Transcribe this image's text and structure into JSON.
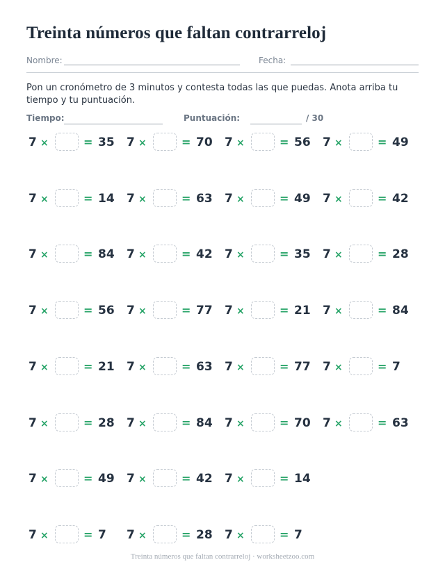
{
  "title": "Treinta números que faltan contrarreloj",
  "fields": {
    "name_label": "Nombre:",
    "date_label": "Fecha:"
  },
  "instructions": "Pon un cronómetro de 3 minutos y contesta todas las que puedas. Anota arriba tu tiempo y tu puntuación.",
  "score": {
    "time_label": "Tiempo:",
    "points_label": "Puntuación:",
    "total": "/ 30"
  },
  "times_symbol": "×",
  "equals_symbol": "=",
  "problems": [
    {
      "factor": "7",
      "result": "35"
    },
    {
      "factor": "7",
      "result": "70"
    },
    {
      "factor": "7",
      "result": "56"
    },
    {
      "factor": "7",
      "result": "49"
    },
    {
      "factor": "7",
      "result": "14"
    },
    {
      "factor": "7",
      "result": "63"
    },
    {
      "factor": "7",
      "result": "49"
    },
    {
      "factor": "7",
      "result": "42"
    },
    {
      "factor": "7",
      "result": "84"
    },
    {
      "factor": "7",
      "result": "42"
    },
    {
      "factor": "7",
      "result": "35"
    },
    {
      "factor": "7",
      "result": "28"
    },
    {
      "factor": "7",
      "result": "56"
    },
    {
      "factor": "7",
      "result": "77"
    },
    {
      "factor": "7",
      "result": "21"
    },
    {
      "factor": "7",
      "result": "84"
    },
    {
      "factor": "7",
      "result": "21"
    },
    {
      "factor": "7",
      "result": "63"
    },
    {
      "factor": "7",
      "result": "77"
    },
    {
      "factor": "7",
      "result": "7"
    },
    {
      "factor": "7",
      "result": "28"
    },
    {
      "factor": "7",
      "result": "84"
    },
    {
      "factor": "7",
      "result": "70"
    },
    {
      "factor": "7",
      "result": "63"
    },
    {
      "factor": "7",
      "result": "49"
    },
    {
      "factor": "7",
      "result": "42"
    },
    {
      "factor": "7",
      "result": "14"
    },
    {
      "factor": "7",
      "result": "7"
    },
    {
      "factor": "7",
      "result": "28"
    },
    {
      "factor": "7",
      "result": "7"
    }
  ],
  "footer": "Treinta números que faltan contrarreloj · worksheetzoo.com"
}
